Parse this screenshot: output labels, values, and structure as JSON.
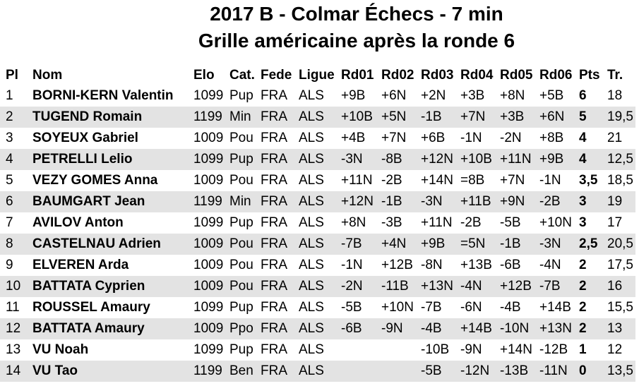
{
  "header": {
    "title": "2017 B - Colmar Échecs - 7 min",
    "subtitle": "Grille américaine après la ronde 6"
  },
  "table": {
    "columns": [
      "Pl",
      "Nom",
      "Elo",
      "Cat.",
      "Fede",
      "Ligue",
      "Rd01",
      "Rd02",
      "Rd03",
      "Rd04",
      "Rd05",
      "Rd06",
      "Pts",
      "Tr."
    ],
    "rows": [
      [
        "1",
        "BORNI-KERN Valentin",
        "1099",
        "Pup",
        "FRA",
        "ALS",
        "+9B",
        "+6N",
        "+2N",
        "+3B",
        "+8N",
        "+5B",
        "6",
        "18"
      ],
      [
        "2",
        "TUGEND Romain",
        "1199",
        "Min",
        "FRA",
        "ALS",
        "+10B",
        "+5N",
        "-1B",
        "+7N",
        "+3B",
        "+6N",
        "5",
        "19,5"
      ],
      [
        "3",
        "SOYEUX Gabriel",
        "1009",
        "Pou",
        "FRA",
        "ALS",
        "+4B",
        "+7N",
        "+6B",
        "-1N",
        "-2N",
        "+8B",
        "4",
        "21"
      ],
      [
        "4",
        "PETRELLI Lelio",
        "1099",
        "Pup",
        "FRA",
        "ALS",
        "-3N",
        "-8B",
        "+12N",
        "+10B",
        "+11N",
        "+9B",
        "4",
        "12,5"
      ],
      [
        "5",
        "VEZY GOMES Anna",
        "1009",
        "Pou",
        "FRA",
        "ALS",
        "+11N",
        "-2B",
        "+14N",
        "=8B",
        "+7N",
        "-1N",
        "3,5",
        "18,5"
      ],
      [
        "6",
        "BAUMGART Jean",
        "1199",
        "Min",
        "FRA",
        "ALS",
        "+12N",
        "-1B",
        "-3N",
        "+11B",
        "+9N",
        "-2B",
        "3",
        "19"
      ],
      [
        "7",
        "AVILOV Anton",
        "1099",
        "Pup",
        "FRA",
        "ALS",
        "+8N",
        "-3B",
        "+11N",
        "-2B",
        "-5B",
        "+10N",
        "3",
        "17"
      ],
      [
        "8",
        "CASTELNAU Adrien",
        "1009",
        "Pou",
        "FRA",
        "ALS",
        "-7B",
        "+4N",
        "+9B",
        "=5N",
        "-1B",
        "-3N",
        "2,5",
        "20,5"
      ],
      [
        "9",
        "ELVEREN Arda",
        "1009",
        "Pou",
        "FRA",
        "ALS",
        "-1N",
        "+12B",
        "-8N",
        "+13B",
        "-6B",
        "-4N",
        "2",
        "17,5"
      ],
      [
        "10",
        "BATTATA Cyprien",
        "1009",
        "Pou",
        "FRA",
        "ALS",
        "-2N",
        "-11B",
        "+13N",
        "-4N",
        "+12B",
        "-7B",
        "2",
        "16"
      ],
      [
        "11",
        "ROUSSEL Amaury",
        "1099",
        "Pup",
        "FRA",
        "ALS",
        "-5B",
        "+10N",
        "-7B",
        "-6N",
        "-4B",
        "+14B",
        "2",
        "15,5"
      ],
      [
        "12",
        "BATTATA Amaury",
        "1009",
        "Ppo",
        "FRA",
        "ALS",
        "-6B",
        "-9N",
        "-4B",
        "+14B",
        "-10N",
        "+13N",
        "2",
        "13"
      ],
      [
        "13",
        "VU Noah",
        "1099",
        "Pup",
        "FRA",
        "ALS",
        null,
        null,
        "-10B",
        "-9N",
        "+14N",
        "-12B",
        "1",
        "12"
      ],
      [
        "14",
        "VU Tao",
        "1199",
        "Ben",
        "FRA",
        "ALS",
        null,
        null,
        "-5B",
        "-12N",
        "-13B",
        "-11N",
        "0",
        "13,5"
      ]
    ]
  }
}
